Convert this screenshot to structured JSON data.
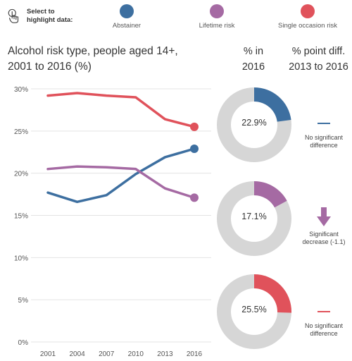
{
  "selector": {
    "label_line1": "Select to",
    "label_line2": "highlight data:",
    "icon": "hand-pointer-icon",
    "items": [
      {
        "label": "Abstainer",
        "color": "#3d6fa0"
      },
      {
        "label": "Lifetime risk",
        "color": "#a56aa3"
      },
      {
        "label": "Single occasion risk",
        "color": "#e0525b"
      }
    ]
  },
  "columns": {
    "pct_line1": "% in",
    "pct_line2": "2016",
    "diff_line1": "% point diff.",
    "diff_line2": "2013 to 2016"
  },
  "chart_data": {
    "type": "line",
    "title": "Alcohol risk type, people aged 14+, 2001 to 2016 (%)",
    "title_line1": "Alcohol risk type, people aged 14+,",
    "title_line2": "2001 to 2016 (%)",
    "x": [
      "2001",
      "2004",
      "2007",
      "2010",
      "2013",
      "2016"
    ],
    "y_ticks": [
      "0%",
      "5%",
      "10%",
      "15%",
      "20%",
      "25%",
      "30%"
    ],
    "ylim": [
      0,
      30
    ],
    "grid": true,
    "series": [
      {
        "name": "Abstainer",
        "color": "#3d6fa0",
        "values": [
          17.7,
          16.6,
          17.4,
          19.9,
          21.9,
          22.9
        ]
      },
      {
        "name": "Lifetime risk",
        "color": "#a56aa3",
        "values": [
          20.5,
          20.8,
          20.7,
          20.5,
          18.2,
          17.1
        ]
      },
      {
        "name": "Single occasion risk",
        "color": "#e0525b",
        "values": [
          29.2,
          29.5,
          29.2,
          29.0,
          26.4,
          25.5
        ]
      }
    ]
  },
  "donuts": [
    {
      "label": "22.9%",
      "value": 22.9,
      "color": "#3d6fa0"
    },
    {
      "label": "17.1%",
      "value": 17.1,
      "color": "#a56aa3"
    },
    {
      "label": "25.5%",
      "value": 25.5,
      "color": "#e0525b"
    }
  ],
  "diffs": [
    {
      "line1": "No significant",
      "line2": "difference",
      "marker": "dash",
      "color": "#3d6fa0"
    },
    {
      "line1": "Significant",
      "line2": "decrease (-1.1)",
      "marker": "down-arrow-icon",
      "color": "#a56aa3"
    },
    {
      "line1": "No significant",
      "line2": "difference",
      "marker": "dash",
      "color": "#e0525b"
    }
  ],
  "track_color": "#d6d6d6"
}
